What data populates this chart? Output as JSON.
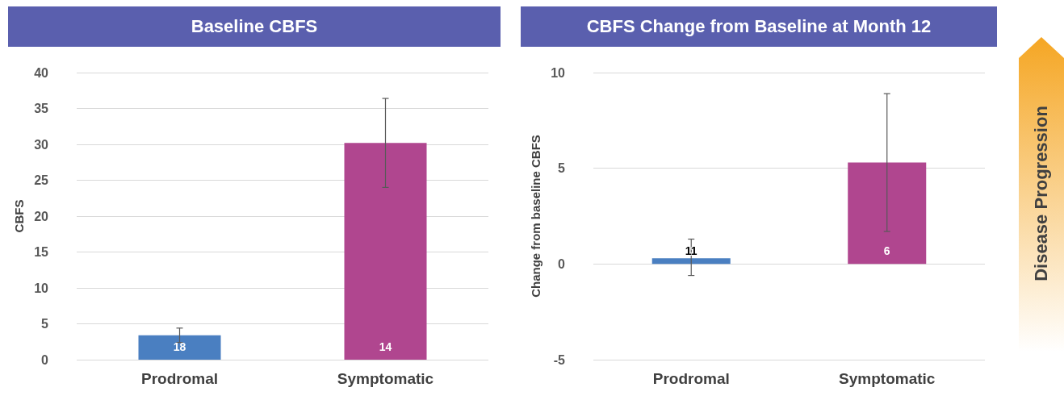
{
  "chart_data": [
    {
      "type": "bar",
      "title": "Baseline CBFS",
      "ylabel": "CBFS",
      "categories": [
        "Prodromal",
        "Symptomatic"
      ],
      "values": [
        3.4,
        30.2
      ],
      "colors": [
        "#4a7fc1",
        "#b0468f"
      ],
      "errors": [
        1.0,
        6.2
      ],
      "ylim": [
        0,
        40
      ],
      "yticks": [
        0,
        5,
        10,
        15,
        20,
        25,
        30,
        35,
        40
      ],
      "grid": "y",
      "annotations": [
        "18",
        "14"
      ]
    },
    {
      "type": "bar",
      "title": "CBFS Change from Baseline at Month 12",
      "ylabel": "Change from baseline CBFS",
      "categories": [
        "Prodromal",
        "Symptomatic"
      ],
      "values": [
        0.3,
        5.3
      ],
      "colors": [
        "#4a7fc1",
        "#b0468f"
      ],
      "errors": [
        [
          -0.6,
          1.3
        ],
        [
          1.7,
          8.9
        ]
      ],
      "ylim": [
        -5,
        10
      ],
      "yticks": [
        -5,
        0,
        5,
        10
      ],
      "grid": "y",
      "annotations": [
        "11",
        "6",
        "Disease Progression"
      ]
    }
  ]
}
